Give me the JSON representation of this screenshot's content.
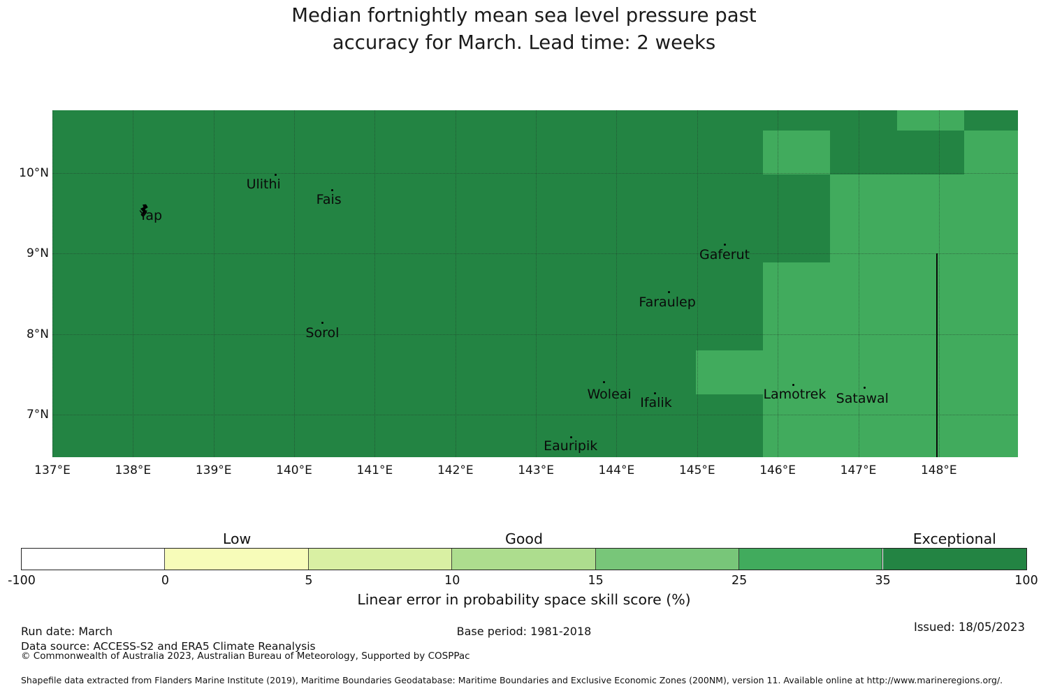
{
  "title": {
    "line1": "Median fortnightly mean sea level pressure past",
    "line2": "accuracy for March. Lead time: 2 weeks"
  },
  "chart_data": {
    "type": "heatmap",
    "title": "Median fortnightly mean sea level pressure past accuracy for March. Lead time: 2 weeks",
    "variable": "Linear error in probability space skill score (%)",
    "x_axis": {
      "ticks": [
        {
          "label": "137°E",
          "lon": 137
        },
        {
          "label": "138°E",
          "lon": 138
        },
        {
          "label": "139°E",
          "lon": 139
        },
        {
          "label": "140°E",
          "lon": 140
        },
        {
          "label": "141°E",
          "lon": 141
        },
        {
          "label": "142°E",
          "lon": 142
        },
        {
          "label": "143°E",
          "lon": 143
        },
        {
          "label": "144°E",
          "lon": 144
        },
        {
          "label": "145°E",
          "lon": 145
        },
        {
          "label": "146°E",
          "lon": 146
        },
        {
          "label": "147°E",
          "lon": 147
        },
        {
          "label": "148°E",
          "lon": 148
        }
      ],
      "lon_range": [
        137.0,
        148.98
      ]
    },
    "y_axis": {
      "ticks": [
        {
          "label": "10°N",
          "lat": 10
        },
        {
          "label": "9°N",
          "lat": 9
        },
        {
          "label": "8°N",
          "lat": 8
        },
        {
          "label": "7°N",
          "lat": 7
        }
      ],
      "lat_range": [
        6.46,
        10.78
      ]
    },
    "grid_on": true,
    "skill_buckets": {
      "default_bucket": "35-100",
      "default_color": "#238443",
      "highlight_bucket": "25-35",
      "highlight_color": "#41ab5d"
    },
    "cell_grid": {
      "note": "model grid cells, col/row indices; col width 0.8323 deg lon from 136.662E, row height 0.5464 deg lat from 11.075N downward",
      "origin_lon": 136.662,
      "origin_lat": 11.075,
      "dlon": 0.8323,
      "dlat": 0.5464
    },
    "cells_25_35": [
      [
        13,
        0
      ],
      [
        11,
        1
      ],
      [
        14,
        1
      ],
      [
        12,
        2
      ],
      [
        13,
        2
      ],
      [
        14,
        2
      ],
      [
        12,
        3
      ],
      [
        13,
        3
      ],
      [
        14,
        3
      ],
      [
        11,
        4
      ],
      [
        12,
        4
      ],
      [
        13,
        4
      ],
      [
        14,
        4
      ],
      [
        11,
        5
      ],
      [
        12,
        5
      ],
      [
        13,
        5
      ],
      [
        14,
        5
      ],
      [
        10,
        6
      ],
      [
        11,
        6
      ],
      [
        12,
        6
      ],
      [
        13,
        6
      ],
      [
        14,
        6
      ],
      [
        11,
        7
      ],
      [
        12,
        7
      ],
      [
        13,
        7
      ],
      [
        14,
        7
      ],
      [
        11,
        8
      ],
      [
        12,
        8
      ],
      [
        13,
        8
      ],
      [
        14,
        8
      ]
    ],
    "eez_boundary_line": {
      "lon": 147.97,
      "lat_from": 9.0,
      "lat_to": 6.46
    },
    "islands": [
      {
        "name": "Yap",
        "lon": 138.13,
        "lat": 9.53,
        "label_lon": 138.22,
        "label_lat": 9.47,
        "marker": "islet-shape"
      },
      {
        "name": "Ulithi",
        "lon": 139.77,
        "lat": 9.98,
        "label_lon": 139.62,
        "label_lat": 9.86,
        "marker": "dot"
      },
      {
        "name": "Fais",
        "lon": 140.47,
        "lat": 9.79,
        "label_lon": 140.43,
        "label_lat": 9.67,
        "marker": "dot"
      },
      {
        "name": "Sorol",
        "lon": 140.35,
        "lat": 8.14,
        "label_lon": 140.35,
        "label_lat": 8.01,
        "marker": "dot"
      },
      {
        "name": "Gaferut",
        "lon": 145.34,
        "lat": 9.11,
        "label_lon": 145.34,
        "label_lat": 8.99,
        "marker": "dot"
      },
      {
        "name": "Faraulep",
        "lon": 144.65,
        "lat": 8.52,
        "label_lon": 144.63,
        "label_lat": 8.4,
        "marker": "dot"
      },
      {
        "name": "Woleai",
        "lon": 143.84,
        "lat": 7.4,
        "label_lon": 143.91,
        "label_lat": 7.25,
        "marker": "dot"
      },
      {
        "name": "Ifalik",
        "lon": 144.48,
        "lat": 7.26,
        "label_lon": 144.49,
        "label_lat": 7.15,
        "marker": "dot"
      },
      {
        "name": "Eauripik",
        "lon": 143.44,
        "lat": 6.72,
        "label_lon": 143.43,
        "label_lat": 6.61,
        "marker": "dot"
      },
      {
        "name": "Lamotrek",
        "lon": 146.19,
        "lat": 7.37,
        "label_lon": 146.21,
        "label_lat": 7.25,
        "marker": "dot"
      },
      {
        "name": "Satawal",
        "lon": 147.08,
        "lat": 7.33,
        "label_lon": 147.05,
        "label_lat": 7.2,
        "marker": "dot"
      }
    ]
  },
  "colorbar": {
    "axis_label": "Linear error in probability space skill score (%)",
    "tick_labels": [
      "-100",
      "0",
      "5",
      "10",
      "15",
      "25",
      "35",
      "100"
    ],
    "segments": [
      {
        "range": "-100 to 0",
        "color": "#ffffff"
      },
      {
        "range": "0 to 5",
        "color": "#f7fcb9"
      },
      {
        "range": "5 to 10",
        "color": "#d9f0a3"
      },
      {
        "range": "10 to 15",
        "color": "#addd8e"
      },
      {
        "range": "15 to 25",
        "color": "#78c679"
      },
      {
        "range": "25 to 35",
        "color": "#41ab5d"
      },
      {
        "range": "35 to 100",
        "color": "#238443"
      }
    ],
    "category_labels": [
      {
        "text": "Low",
        "segment": 1
      },
      {
        "text": "Good",
        "segment": 3
      },
      {
        "text": "Exceptional",
        "segment": 6
      }
    ]
  },
  "footer": {
    "run_date": "Run date: March",
    "base_period": "Base period: 1981-2018",
    "issued": "Issued: 18/05/2023",
    "data_source": "Data source: ACCESS-S2 and ERA5 Climate Reanalysis",
    "copyright": "© Commonwealth of Australia 2023, Australian Bureau of Meteorology, Supported by COSPPac",
    "shapefile_note": "Shapefile data extracted from Flanders Marine Institute (2019), Maritime Boundaries Geodatabase: Maritime Boundaries and Exclusive Economic Zones (200NM), version 11. Available online at http://www.marineregions.org/."
  }
}
